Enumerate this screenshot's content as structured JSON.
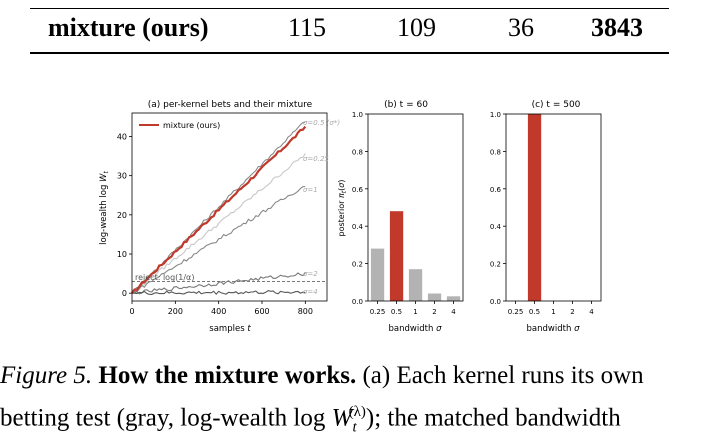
{
  "table": {
    "row": [
      "mixture (ours)",
      "115",
      "109",
      "36",
      "3843"
    ]
  },
  "caption": {
    "figure_label": "Figure 5.",
    "bold": "How the mixture works.",
    "text1": "(a) Each kernel runs its own",
    "text2a": "betting test (gray, log-wealth log",
    "text2_w": "W",
    "text2_sub": "t",
    "text2_sup": "(λ)",
    "text2b": "); the matched bandwidth"
  },
  "chart_data": [
    {
      "type": "line",
      "title": "(a) per-kernel bets and their mixture",
      "xlabel": "samples t",
      "ylabel": "log-wealth log W_t",
      "xlim": [
        0,
        900
      ],
      "ylim": [
        -2,
        46
      ],
      "xticks": [
        "0",
        "200",
        "400",
        "600",
        "800"
      ],
      "yticks": [
        "0",
        "10",
        "20",
        "30",
        "40"
      ],
      "legend": {
        "label": "mixture (ours)",
        "placement": "top-left"
      },
      "threshold": {
        "label": "reject: log(1/α)",
        "value": 3
      },
      "series": [
        {
          "name": "mixture (ours)",
          "color": "#c0392b",
          "x": [
            0,
            800
          ],
          "y": [
            0,
            42.5
          ]
        },
        {
          "name": "σ=0.5 (σ*)",
          "color": "#888888",
          "x": [
            0,
            800
          ],
          "y": [
            0,
            44
          ]
        },
        {
          "name": "σ=0.25",
          "color": "#c8c8c8",
          "x": [
            0,
            800
          ],
          "y": [
            0,
            35.5
          ]
        },
        {
          "name": "σ=1",
          "color": "#888888",
          "x": [
            0,
            800
          ],
          "y": [
            0,
            27.5
          ]
        },
        {
          "name": "σ=2",
          "color": "#777777",
          "x": [
            0,
            800
          ],
          "y": [
            0,
            5
          ]
        },
        {
          "name": "σ=4",
          "color": "#555555",
          "x": [
            0,
            800
          ],
          "y": [
            0,
            0.3
          ]
        }
      ]
    },
    {
      "type": "bar",
      "title": "(b) t = 60",
      "xlabel": "bandwidth σ",
      "ylabel": "posterior π_t(σ)",
      "categories": [
        "0.25",
        "0.5",
        "1",
        "2",
        "4"
      ],
      "values": [
        0.28,
        0.48,
        0.17,
        0.04,
        0.025
      ],
      "highlight": "0.5",
      "ylim": [
        0,
        1.0
      ],
      "yticks": [
        "0.0",
        "0.2",
        "0.4",
        "0.6",
        "0.8",
        "1.0"
      ]
    },
    {
      "type": "bar",
      "title": "(c) t = 500",
      "xlabel": "bandwidth σ",
      "categories": [
        "0.25",
        "0.5",
        "1",
        "2",
        "4"
      ],
      "values": [
        0,
        1.0,
        0,
        0,
        0
      ],
      "highlight": "0.5",
      "ylim": [
        0,
        1.0
      ],
      "yticks": [
        "0.0",
        "0.2",
        "0.4",
        "0.6",
        "0.8",
        "1.0"
      ]
    }
  ],
  "colors": {
    "highlight": "#c0392b",
    "bar": "#b3b3b3",
    "axis": "#000000"
  }
}
